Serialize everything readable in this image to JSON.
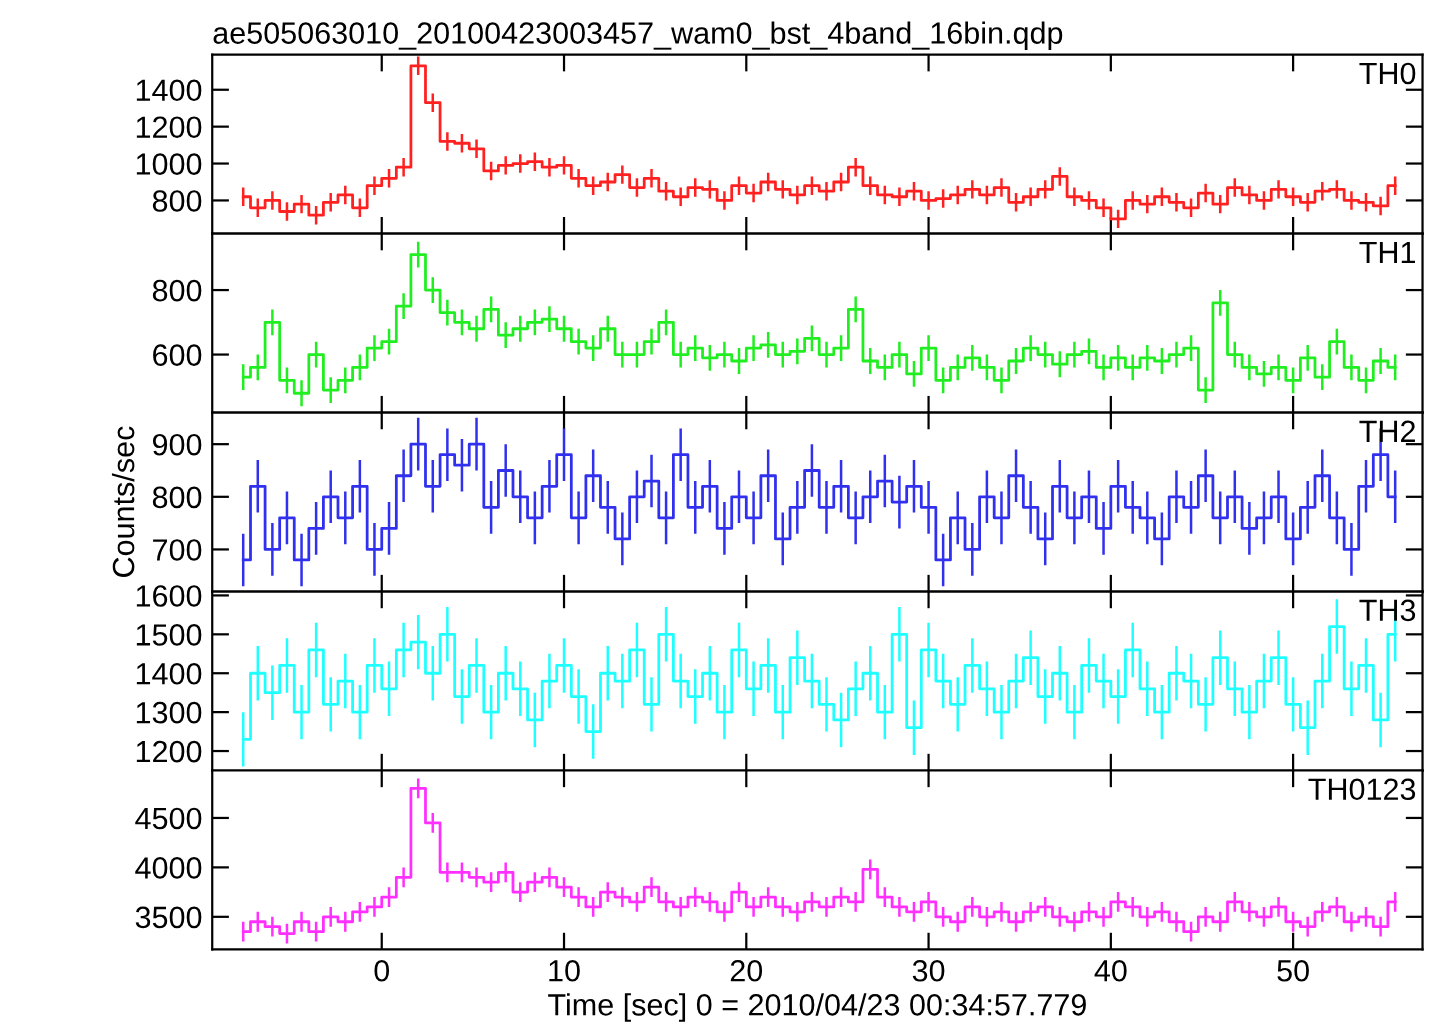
{
  "chart_data": [
    {
      "type": "step",
      "title": "ae505063010_20100423003457_wam0_bst_4band_16bin.qdp",
      "tick_labels": "y",
      "xlim": [
        -9.3,
        57.1
      ],
      "xticks": [
        0,
        10,
        20,
        30,
        40,
        50
      ],
      "ylim": [
        620,
        1590
      ],
      "yticks": [
        800,
        1000,
        1200,
        1400
      ],
      "x": [
        -7.6,
        -6.8,
        -6.0,
        -5.2,
        -4.4,
        -3.6,
        -2.8,
        -2.0,
        -1.2,
        -0.4,
        0.4,
        1.2,
        2.0,
        2.8,
        3.6,
        4.4,
        5.2,
        6.0,
        6.8,
        7.6,
        8.4,
        9.2,
        10.0,
        10.8,
        11.6,
        12.4,
        13.2,
        14.0,
        14.8,
        15.6,
        16.4,
        17.2,
        18.0,
        18.8,
        19.6,
        20.4,
        21.2,
        22.0,
        22.8,
        23.6,
        24.4,
        25.2,
        26.0,
        26.8,
        27.6,
        28.4,
        29.2,
        30.0,
        30.8,
        31.6,
        32.4,
        33.2,
        34.0,
        34.8,
        35.6,
        36.4,
        37.2,
        38.0,
        38.8,
        39.6,
        40.4,
        41.2,
        42.0,
        42.8,
        43.6,
        44.4,
        45.2,
        46.0,
        46.8,
        47.6,
        48.4,
        49.2,
        50.0,
        50.8,
        51.6,
        52.4,
        53.2,
        54.0,
        54.8,
        55.6
      ],
      "series": [
        {
          "name": "TH0",
          "color": "#ff2020",
          "values": [
            820,
            760,
            800,
            740,
            780,
            720,
            790,
            830,
            760,
            880,
            920,
            980,
            1530,
            1330,
            1120,
            1110,
            1080,
            960,
            990,
            1000,
            1010,
            980,
            990,
            920,
            880,
            900,
            940,
            870,
            920,
            850,
            820,
            870,
            860,
            800,
            880,
            840,
            900,
            860,
            830,
            880,
            850,
            900,
            980,
            880,
            830,
            820,
            850,
            800,
            810,
            830,
            860,
            830,
            870,
            790,
            820,
            860,
            930,
            820,
            800,
            760,
            700,
            800,
            780,
            820,
            790,
            760,
            840,
            780,
            870,
            830,
            800,
            860,
            820,
            790,
            850,
            860,
            800,
            790,
            770,
            880
          ],
          "errors": [
            50,
            50,
            50,
            50,
            50,
            50,
            50,
            50,
            50,
            50,
            50,
            50,
            50,
            50,
            50,
            50,
            50,
            50,
            50,
            50,
            50,
            50,
            50,
            50,
            50,
            50,
            50,
            50,
            50,
            50,
            50,
            50,
            50,
            50,
            50,
            50,
            50,
            50,
            50,
            50,
            50,
            50,
            50,
            50,
            50,
            50,
            50,
            50,
            50,
            50,
            50,
            50,
            50,
            50,
            50,
            50,
            50,
            50,
            50,
            50,
            50,
            50,
            50,
            50,
            50,
            50,
            50,
            50,
            50,
            50,
            50,
            50,
            50,
            50,
            50,
            50,
            50,
            50,
            50,
            50
          ]
        }
      ]
    },
    {
      "type": "step",
      "tick_labels": "y",
      "xlim": [
        -9.3,
        57.1
      ],
      "xticks": [
        0,
        10,
        20,
        30,
        40,
        50
      ],
      "ylim": [
        420,
        975
      ],
      "yticks": [
        600,
        800
      ],
      "x": [
        -7.6,
        -6.8,
        -6.0,
        -5.2,
        -4.4,
        -3.6,
        -2.8,
        -2.0,
        -1.2,
        -0.4,
        0.4,
        1.2,
        2.0,
        2.8,
        3.6,
        4.4,
        5.2,
        6.0,
        6.8,
        7.6,
        8.4,
        9.2,
        10.0,
        10.8,
        11.6,
        12.4,
        13.2,
        14.0,
        14.8,
        15.6,
        16.4,
        17.2,
        18.0,
        18.8,
        19.6,
        20.4,
        21.2,
        22.0,
        22.8,
        23.6,
        24.4,
        25.2,
        26.0,
        26.8,
        27.6,
        28.4,
        29.2,
        30.0,
        30.8,
        31.6,
        32.4,
        33.2,
        34.0,
        34.8,
        35.6,
        36.4,
        37.2,
        38.0,
        38.8,
        39.6,
        40.4,
        41.2,
        42.0,
        42.8,
        43.6,
        44.4,
        45.2,
        46.0,
        46.8,
        47.6,
        48.4,
        49.2,
        50.0,
        50.8,
        51.6,
        52.4,
        53.2,
        54.0,
        54.8,
        55.6
      ],
      "series": [
        {
          "name": "TH1",
          "color": "#20ee20",
          "values": [
            530,
            560,
            700,
            520,
            480,
            600,
            490,
            520,
            560,
            620,
            640,
            750,
            910,
            800,
            730,
            700,
            680,
            740,
            660,
            680,
            700,
            710,
            680,
            640,
            620,
            680,
            600,
            600,
            640,
            700,
            600,
            620,
            590,
            600,
            580,
            620,
            630,
            600,
            610,
            650,
            600,
            620,
            740,
            580,
            560,
            600,
            540,
            620,
            520,
            560,
            590,
            560,
            520,
            580,
            620,
            600,
            570,
            600,
            610,
            560,
            590,
            560,
            590,
            580,
            600,
            620,
            490,
            760,
            600,
            560,
            540,
            560,
            520,
            590,
            530,
            640,
            560,
            520,
            580,
            560
          ],
          "errors": [
            40,
            40,
            40,
            40,
            40,
            40,
            40,
            40,
            40,
            40,
            40,
            40,
            40,
            40,
            40,
            40,
            40,
            40,
            40,
            40,
            40,
            40,
            40,
            40,
            40,
            40,
            40,
            40,
            40,
            40,
            40,
            40,
            40,
            40,
            40,
            40,
            40,
            40,
            40,
            40,
            40,
            40,
            40,
            40,
            40,
            40,
            40,
            40,
            40,
            40,
            40,
            40,
            40,
            40,
            40,
            40,
            40,
            40,
            40,
            40,
            40,
            40,
            40,
            40,
            40,
            40,
            40,
            40,
            40,
            40,
            40,
            40,
            40,
            40,
            40,
            40,
            40,
            40,
            40,
            40
          ]
        }
      ]
    },
    {
      "type": "step",
      "tick_labels": "y",
      "ylabel": "Counts/sec",
      "xlim": [
        -9.3,
        57.1
      ],
      "xticks": [
        0,
        10,
        20,
        30,
        40,
        50
      ],
      "ylim": [
        620,
        960
      ],
      "yticks": [
        700,
        800,
        900
      ],
      "x": [
        -7.6,
        -6.8,
        -6.0,
        -5.2,
        -4.4,
        -3.6,
        -2.8,
        -2.0,
        -1.2,
        -0.4,
        0.4,
        1.2,
        2.0,
        2.8,
        3.6,
        4.4,
        5.2,
        6.0,
        6.8,
        7.6,
        8.4,
        9.2,
        10.0,
        10.8,
        11.6,
        12.4,
        13.2,
        14.0,
        14.8,
        15.6,
        16.4,
        17.2,
        18.0,
        18.8,
        19.6,
        20.4,
        21.2,
        22.0,
        22.8,
        23.6,
        24.4,
        25.2,
        26.0,
        26.8,
        27.6,
        28.4,
        29.2,
        30.0,
        30.8,
        31.6,
        32.4,
        33.2,
        34.0,
        34.8,
        35.6,
        36.4,
        37.2,
        38.0,
        38.8,
        39.6,
        40.4,
        41.2,
        42.0,
        42.8,
        43.6,
        44.4,
        45.2,
        46.0,
        46.8,
        47.6,
        48.4,
        49.2,
        50.0,
        50.8,
        51.6,
        52.4,
        53.2,
        54.0,
        54.8,
        55.6
      ],
      "series": [
        {
          "name": "TH2",
          "color": "#3030ee",
          "values": [
            680,
            820,
            700,
            760,
            680,
            740,
            800,
            760,
            820,
            700,
            740,
            840,
            900,
            820,
            880,
            860,
            900,
            780,
            850,
            800,
            760,
            820,
            880,
            760,
            840,
            780,
            720,
            800,
            830,
            760,
            880,
            780,
            820,
            740,
            800,
            760,
            840,
            720,
            780,
            850,
            780,
            820,
            760,
            800,
            830,
            790,
            820,
            780,
            680,
            760,
            700,
            800,
            760,
            840,
            780,
            720,
            820,
            760,
            800,
            740,
            820,
            780,
            760,
            720,
            800,
            780,
            840,
            760,
            800,
            740,
            760,
            800,
            720,
            780,
            840,
            760,
            700,
            820,
            880,
            800
          ],
          "errors": [
            50,
            50,
            50,
            50,
            50,
            50,
            50,
            50,
            50,
            50,
            50,
            50,
            50,
            50,
            50,
            50,
            50,
            50,
            50,
            50,
            50,
            50,
            50,
            50,
            50,
            50,
            50,
            50,
            50,
            50,
            50,
            50,
            50,
            50,
            50,
            50,
            50,
            50,
            50,
            50,
            50,
            50,
            50,
            50,
            50,
            50,
            50,
            50,
            50,
            50,
            50,
            50,
            50,
            50,
            50,
            50,
            50,
            50,
            50,
            50,
            50,
            50,
            50,
            50,
            50,
            50,
            50,
            50,
            50,
            50,
            50,
            50,
            50,
            50,
            50,
            50,
            50,
            50,
            50,
            50
          ]
        }
      ]
    },
    {
      "type": "step",
      "tick_labels": "y",
      "xlim": [
        -9.3,
        57.1
      ],
      "xticks": [
        0,
        10,
        20,
        30,
        40,
        50
      ],
      "ylim": [
        1150,
        1610
      ],
      "yticks": [
        1200,
        1300,
        1400,
        1500,
        1600
      ],
      "x": [
        -7.6,
        -6.8,
        -6.0,
        -5.2,
        -4.4,
        -3.6,
        -2.8,
        -2.0,
        -1.2,
        -0.4,
        0.4,
        1.2,
        2.0,
        2.8,
        3.6,
        4.4,
        5.2,
        6.0,
        6.8,
        7.6,
        8.4,
        9.2,
        10.0,
        10.8,
        11.6,
        12.4,
        13.2,
        14.0,
        14.8,
        15.6,
        16.4,
        17.2,
        18.0,
        18.8,
        19.6,
        20.4,
        21.2,
        22.0,
        22.8,
        23.6,
        24.4,
        25.2,
        26.0,
        26.8,
        27.6,
        28.4,
        29.2,
        30.0,
        30.8,
        31.6,
        32.4,
        33.2,
        34.0,
        34.8,
        35.6,
        36.4,
        37.2,
        38.0,
        38.8,
        39.6,
        40.4,
        41.2,
        42.0,
        42.8,
        43.6,
        44.4,
        45.2,
        46.0,
        46.8,
        47.6,
        48.4,
        49.2,
        50.0,
        50.8,
        51.6,
        52.4,
        53.2,
        54.0,
        54.8,
        55.6
      ],
      "series": [
        {
          "name": "TH3",
          "color": "#20ffff",
          "values": [
            1230,
            1400,
            1350,
            1420,
            1300,
            1460,
            1320,
            1380,
            1300,
            1420,
            1360,
            1460,
            1480,
            1400,
            1500,
            1340,
            1420,
            1300,
            1400,
            1360,
            1280,
            1380,
            1420,
            1340,
            1250,
            1400,
            1380,
            1460,
            1320,
            1500,
            1380,
            1340,
            1400,
            1300,
            1460,
            1360,
            1420,
            1300,
            1440,
            1380,
            1320,
            1280,
            1360,
            1400,
            1300,
            1500,
            1260,
            1460,
            1380,
            1320,
            1420,
            1360,
            1300,
            1380,
            1440,
            1340,
            1400,
            1300,
            1420,
            1380,
            1340,
            1460,
            1360,
            1300,
            1400,
            1380,
            1320,
            1440,
            1360,
            1300,
            1380,
            1440,
            1320,
            1260,
            1380,
            1520,
            1360,
            1420,
            1280,
            1500
          ],
          "errors": [
            70,
            70,
            70,
            70,
            70,
            70,
            70,
            70,
            70,
            70,
            70,
            70,
            70,
            70,
            70,
            70,
            70,
            70,
            70,
            70,
            70,
            70,
            70,
            70,
            70,
            70,
            70,
            70,
            70,
            70,
            70,
            70,
            70,
            70,
            70,
            70,
            70,
            70,
            70,
            70,
            70,
            70,
            70,
            70,
            70,
            70,
            70,
            70,
            70,
            70,
            70,
            70,
            70,
            70,
            70,
            70,
            70,
            70,
            70,
            70,
            70,
            70,
            70,
            70,
            70,
            70,
            70,
            70,
            70,
            70,
            70,
            70,
            70,
            70,
            70,
            70,
            70,
            70,
            70,
            70
          ]
        }
      ]
    },
    {
      "type": "step",
      "xlabel": "Time [sec] 0 = 2010/04/23 00:34:57.779",
      "xlim": [
        -9.3,
        57.1
      ],
      "xticks": [
        0,
        10,
        20,
        30,
        40,
        50
      ],
      "ylim": [
        3170,
        4980
      ],
      "yticks": [
        3500,
        4000,
        4500
      ],
      "x": [
        -7.6,
        -6.8,
        -6.0,
        -5.2,
        -4.4,
        -3.6,
        -2.8,
        -2.0,
        -1.2,
        -0.4,
        0.4,
        1.2,
        2.0,
        2.8,
        3.6,
        4.4,
        5.2,
        6.0,
        6.8,
        7.6,
        8.4,
        9.2,
        10.0,
        10.8,
        11.6,
        12.4,
        13.2,
        14.0,
        14.8,
        15.6,
        16.4,
        17.2,
        18.0,
        18.8,
        19.6,
        20.4,
        21.2,
        22.0,
        22.8,
        23.6,
        24.4,
        25.2,
        26.0,
        26.8,
        27.6,
        28.4,
        29.2,
        30.0,
        30.8,
        31.6,
        32.4,
        33.2,
        34.0,
        34.8,
        35.6,
        36.4,
        37.2,
        38.0,
        38.8,
        39.6,
        40.4,
        41.2,
        42.0,
        42.8,
        43.6,
        44.4,
        45.2,
        46.0,
        46.8,
        47.6,
        48.4,
        49.2,
        50.0,
        50.8,
        51.6,
        52.4,
        53.2,
        54.0,
        54.8,
        55.6
      ],
      "series": [
        {
          "name": "TH0123",
          "color": "#ff30ff",
          "values": [
            3350,
            3450,
            3400,
            3330,
            3450,
            3350,
            3500,
            3450,
            3550,
            3600,
            3700,
            3900,
            4800,
            4450,
            3950,
            3950,
            3900,
            3850,
            3950,
            3750,
            3850,
            3900,
            3800,
            3700,
            3600,
            3750,
            3700,
            3650,
            3800,
            3650,
            3600,
            3700,
            3650,
            3550,
            3750,
            3600,
            3700,
            3600,
            3550,
            3650,
            3600,
            3700,
            3650,
            3980,
            3700,
            3600,
            3550,
            3650,
            3500,
            3450,
            3600,
            3500,
            3550,
            3450,
            3550,
            3600,
            3500,
            3450,
            3550,
            3500,
            3650,
            3600,
            3500,
            3550,
            3450,
            3350,
            3500,
            3450,
            3650,
            3550,
            3500,
            3600,
            3450,
            3400,
            3550,
            3600,
            3450,
            3500,
            3400,
            3650
          ],
          "errors": [
            100,
            100,
            100,
            100,
            100,
            100,
            100,
            100,
            100,
            100,
            100,
            100,
            100,
            100,
            100,
            100,
            100,
            100,
            100,
            100,
            100,
            100,
            100,
            100,
            100,
            100,
            100,
            100,
            100,
            100,
            100,
            100,
            100,
            100,
            100,
            100,
            100,
            100,
            100,
            100,
            100,
            100,
            100,
            100,
            100,
            100,
            100,
            100,
            100,
            100,
            100,
            100,
            100,
            100,
            100,
            100,
            100,
            100,
            100,
            100,
            100,
            100,
            100,
            100,
            100,
            100,
            100,
            100,
            100,
            100,
            100,
            100,
            100,
            100,
            100,
            100,
            100,
            100,
            100,
            100
          ]
        }
      ]
    }
  ]
}
